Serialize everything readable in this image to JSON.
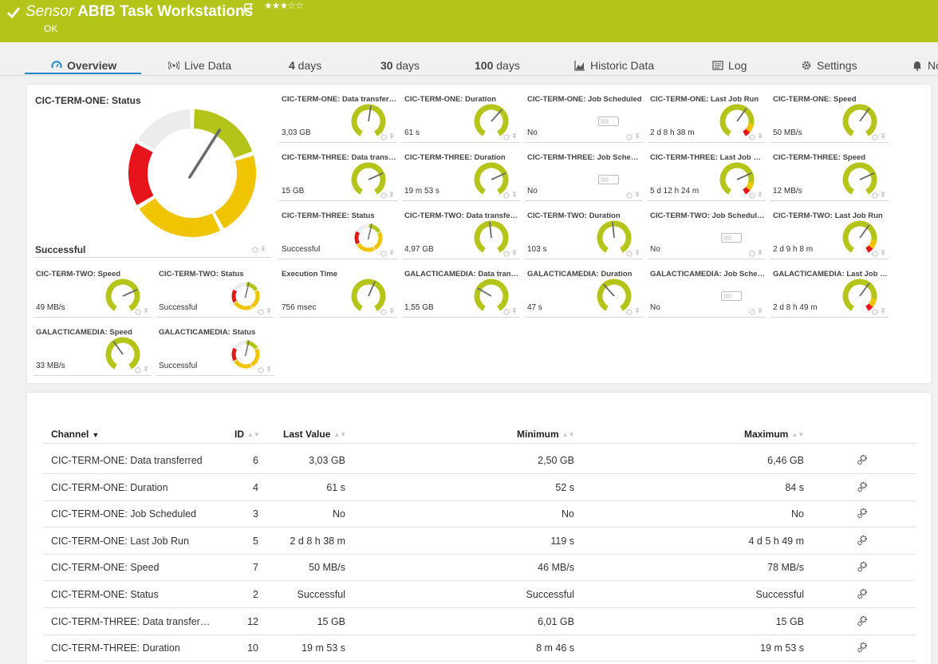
{
  "header": {
    "prefix": "Sensor",
    "title": "ABfB Task Workstations",
    "stars": "★★★☆☆",
    "status": "OK",
    "colors": {
      "bar": "#b4c418"
    }
  },
  "tabs": [
    {
      "label": "Overview",
      "icon": "gauge-icon"
    },
    {
      "label": "Live Data",
      "icon": "live-data-icon"
    },
    {
      "num": "4",
      "label": " days"
    },
    {
      "num": "30",
      "label": " days"
    },
    {
      "num": "100",
      "label": " days"
    },
    {
      "label": "Historic Data",
      "icon": "area-chart-icon"
    },
    {
      "label": "Log",
      "icon": "log-icon"
    },
    {
      "label": "Settings",
      "icon": "gear-icon"
    },
    {
      "label": "No",
      "icon": "bell-icon"
    }
  ],
  "big_gauge": {
    "title": "CIC-TERM-ONE: Status",
    "value": "Successful",
    "needle_fraction": 0.62
  },
  "gauges": [
    {
      "title": "CIC-TERM-ONE: Data transferred",
      "value": "3,03 GB",
      "kind": "green",
      "level": 0.53
    },
    {
      "title": "CIC-TERM-ONE: Duration",
      "value": "61 s",
      "kind": "green",
      "level": 0.64
    },
    {
      "title": "CIC-TERM-ONE: Job Scheduled",
      "value": "No",
      "kind": "toggle"
    },
    {
      "title": "CIC-TERM-ONE: Last Job Run",
      "value": "2 d 8 h 38 m",
      "kind": "warn",
      "level": 0.62
    },
    {
      "title": "CIC-TERM-ONE: Speed",
      "value": "50 MB/s",
      "kind": "green",
      "level": 0.62
    },
    {
      "title": "CIC-TERM-THREE: Data transferred",
      "value": "15 GB",
      "kind": "green",
      "level": 0.72
    },
    {
      "title": "CIC-TERM-THREE: Duration",
      "value": "19 m 53 s",
      "kind": "green",
      "level": 0.72
    },
    {
      "title": "CIC-TERM-THREE: Job Scheduled",
      "value": "No",
      "kind": "toggle"
    },
    {
      "title": "CIC-TERM-THREE: Last Job Run",
      "value": "5 d 12 h 24 m",
      "kind": "warn",
      "level": 0.72
    },
    {
      "title": "CIC-TERM-THREE: Speed",
      "value": "12 MB/s",
      "kind": "green",
      "level": 0.72
    },
    {
      "title": "CIC-TERM-THREE: Status",
      "value": "Successful",
      "kind": "status",
      "level": 0.55
    },
    {
      "title": "CIC-TERM-TWO: Data transferred",
      "value": "4,97 GB",
      "kind": "green",
      "level": 0.48
    },
    {
      "title": "CIC-TERM-TWO: Duration",
      "value": "103 s",
      "kind": "green",
      "level": 0.48
    },
    {
      "title": "CIC-TERM-TWO: Job Scheduled",
      "value": "No",
      "kind": "toggle"
    },
    {
      "title": "CIC-TERM-TWO: Last Job Run",
      "value": "2 d 9 h 8 m",
      "kind": "warn",
      "level": 0.62
    },
    {
      "title": "CIC-TERM-TWO: Speed",
      "value": "49 MB/s",
      "kind": "green",
      "level": 0.72
    },
    {
      "title": "CIC-TERM-TWO: Status",
      "value": "Successful",
      "kind": "status",
      "level": 0.55
    },
    {
      "title": "Execution Time",
      "value": "756 msec",
      "kind": "green",
      "level": 0.58
    },
    {
      "title": "GALACTICAMEDIA: Data transferred",
      "value": "1,55 GB",
      "kind": "green",
      "level": 0.3
    },
    {
      "title": "GALACTICAMEDIA: Duration",
      "value": "47 s",
      "kind": "green",
      "level": 0.36
    },
    {
      "title": "GALACTICAMEDIA: Job Scheduled",
      "value": "No",
      "kind": "toggle"
    },
    {
      "title": "GALACTICAMEDIA: Last Job Run",
      "value": "2 d 8 h 49 m",
      "kind": "warn",
      "level": 0.62
    },
    {
      "title": "GALACTICAMEDIA: Speed",
      "value": "33 MB/s",
      "kind": "green",
      "level": 0.38
    },
    {
      "title": "GALACTICAMEDIA: Status",
      "value": "Successful",
      "kind": "status",
      "level": 0.55
    }
  ],
  "table": {
    "headers": {
      "channel": "Channel",
      "id": "ID",
      "last_value": "Last Value",
      "minimum": "Minimum",
      "maximum": "Maximum"
    },
    "rows": [
      {
        "channel": "CIC-TERM-ONE: Data transferred",
        "id": "6",
        "last": "3,03 GB",
        "min": "2,50 GB",
        "max": "6,46 GB"
      },
      {
        "channel": "CIC-TERM-ONE: Duration",
        "id": "4",
        "last": "61 s",
        "min": "52 s",
        "max": "84 s"
      },
      {
        "channel": "CIC-TERM-ONE: Job Scheduled",
        "id": "3",
        "last": "No",
        "min": "No",
        "max": "No"
      },
      {
        "channel": "CIC-TERM-ONE: Last Job Run",
        "id": "5",
        "last": "2 d 8 h 38 m",
        "min": "119 s",
        "max": "4 d 5 h 49 m"
      },
      {
        "channel": "CIC-TERM-ONE: Speed",
        "id": "7",
        "last": "50 MB/s",
        "min": "46 MB/s",
        "max": "78 MB/s"
      },
      {
        "channel": "CIC-TERM-ONE: Status",
        "id": "2",
        "last": "Successful",
        "min": "Successful",
        "max": "Successful"
      },
      {
        "channel": "CIC-TERM-THREE: Data transferred",
        "id": "12",
        "last": "15 GB",
        "min": "6,01 GB",
        "max": "15 GB"
      },
      {
        "channel": "CIC-TERM-THREE: Duration",
        "id": "10",
        "last": "19 m 53 s",
        "min": "8 m 46 s",
        "max": "19 m 53 s"
      }
    ]
  }
}
